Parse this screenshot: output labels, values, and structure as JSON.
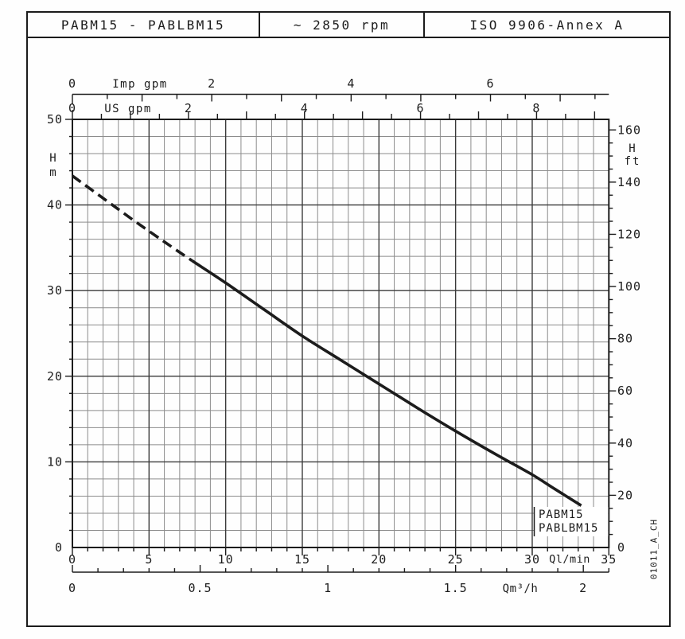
{
  "header": {
    "model": "PABM15 - PABLBM15",
    "speed": "~ 2850 rpm",
    "standard": "ISO 9906-Annex A"
  },
  "watermark": "01011_A_CH",
  "chart_data": {
    "type": "line",
    "title": "PABM15 - PABLBM15 head curve",
    "grid": true,
    "series": [
      {
        "name": "PABM15 - PABLBM15",
        "x_l_min": [
          0,
          2,
          4,
          6,
          7.8,
          10,
          12.5,
          15,
          17.5,
          20,
          22.5,
          25,
          27.5,
          30,
          31.5,
          33.2
        ],
        "y_h_m": [
          43.4,
          40.8,
          38.2,
          35.7,
          33.5,
          30.9,
          27.8,
          24.7,
          21.9,
          19.1,
          16.3,
          13.6,
          11.0,
          8.5,
          6.8,
          4.9
        ],
        "dashed_below_l_min": 7.8
      }
    ],
    "curve_label": {
      "lines": [
        "PABM15",
        "PABLBM15"
      ]
    },
    "axes": {
      "left": {
        "title_lines": [
          "H",
          "m"
        ],
        "min": 0,
        "max": 50,
        "major_step": 10,
        "minor_step": 2,
        "tick_labels": [
          "0",
          "10",
          "20",
          "30",
          "40",
          "50"
        ]
      },
      "right": {
        "title_lines": [
          "H",
          "ft"
        ],
        "min": 0,
        "max": 164,
        "major_step": 20,
        "minor_step": 5,
        "tick_labels": [
          "0",
          "20",
          "40",
          "60",
          "80",
          "100",
          "120",
          "140",
          "160"
        ]
      },
      "bottom_l_min": {
        "label": "Ql/min",
        "min": 0,
        "max": 35,
        "major_step": 5,
        "minor_step": 1,
        "tick_labels": [
          "0",
          "5",
          "10",
          "15",
          "20",
          "25",
          "30",
          "35"
        ]
      },
      "bottom_m3h": {
        "label": "Qm³/h",
        "min": 0,
        "max": 2.1,
        "major_step": 0.5,
        "minor_step": 0.1,
        "tick_labels": [
          "0",
          "0.5",
          "1",
          "1.5",
          "2"
        ]
      },
      "top_imp_gpm": {
        "label": "Imp gpm",
        "minor_step": 0.5,
        "tick_labels": [
          "0",
          "2",
          "4",
          "6"
        ]
      },
      "top_us_gpm": {
        "label": "US gpm",
        "minor_step": 0.5,
        "tick_labels": [
          "0",
          "2",
          "4",
          "6",
          "8"
        ]
      }
    },
    "colors": {
      "ink": "#1c1c1c",
      "major_grid": "#3a3a3a",
      "minor_grid": "#8c8c8c"
    }
  }
}
